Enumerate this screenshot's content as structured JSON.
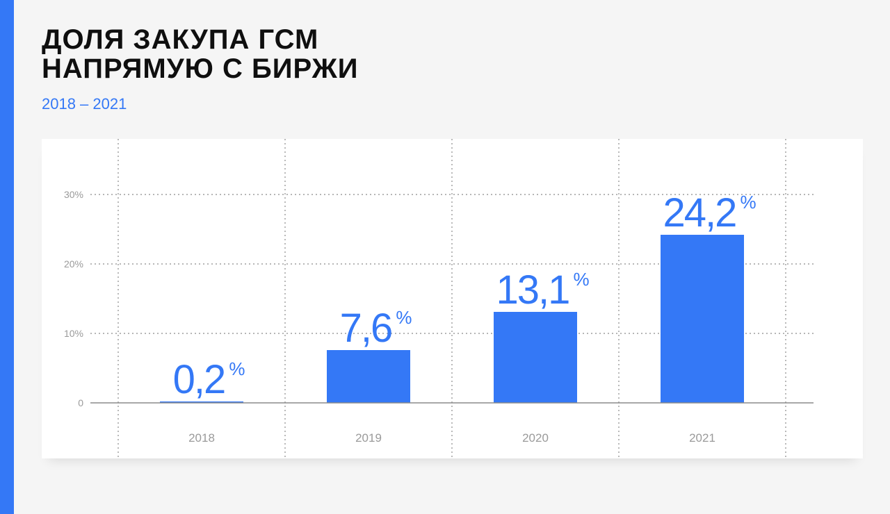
{
  "title_lines": [
    "ДОЛЯ ЗАКУПА ГСМ",
    "НАПРЯМУЮ С БИРЖИ"
  ],
  "subtitle": "2018 – 2021",
  "colors": {
    "accent": "#3478f6",
    "text": "#0f0f0f",
    "muted": "#9a9a9a",
    "background": "#f5f5f5"
  },
  "chart_data": {
    "type": "bar",
    "categories": [
      "2018",
      "2019",
      "2020",
      "2021"
    ],
    "values": [
      0.2,
      7.6,
      13.1,
      24.2
    ],
    "value_labels": [
      "0,2",
      "7,6",
      "13,1",
      "24,2"
    ],
    "value_unit": "%",
    "title": "ДОЛЯ ЗАКУПА ГСМ НАПРЯМУЮ С БИРЖИ",
    "subtitle": "2018 – 2021",
    "xlabel": "",
    "ylabel": "",
    "ylim": [
      0,
      30
    ],
    "yticks": [
      0,
      10,
      20,
      30
    ],
    "ytick_labels": [
      "0",
      "10%",
      "20%",
      "30%"
    ],
    "grid": true,
    "bar_color": "#3478f6"
  }
}
